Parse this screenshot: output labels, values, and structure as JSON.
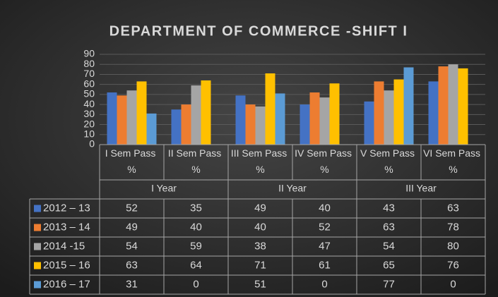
{
  "chart_data": {
    "type": "bar",
    "title": "DEPARTMENT OF COMMERCE -SHIFT I",
    "categories": [
      "I Sem Pass %",
      "II Sem Pass %",
      "III Sem Pass %",
      "IV Sem Pass %",
      "V Sem Pass %",
      "VI Sem Pass %"
    ],
    "category_groups": [
      "I Year",
      "II Year",
      "III Year"
    ],
    "series": [
      {
        "name": "2012 – 13",
        "color": "#4472c4",
        "values": [
          52,
          35,
          49,
          40,
          43,
          63
        ]
      },
      {
        "name": "2013 – 14",
        "color": "#ed7d31",
        "values": [
          49,
          40,
          40,
          52,
          63,
          78
        ]
      },
      {
        "name": "2014 -15",
        "color": "#a5a5a5",
        "values": [
          54,
          59,
          38,
          47,
          54,
          80
        ]
      },
      {
        "name": "2015 – 16",
        "color": "#ffc000",
        "values": [
          63,
          64,
          71,
          61,
          65,
          76
        ]
      },
      {
        "name": "2016 – 17",
        "color": "#5b9bd5",
        "values": [
          31,
          0,
          51,
          0,
          77,
          0
        ]
      }
    ],
    "ylim": [
      0,
      90
    ],
    "yticks": [
      0,
      10,
      20,
      30,
      40,
      50,
      60,
      70,
      80,
      90
    ],
    "grid": true
  }
}
